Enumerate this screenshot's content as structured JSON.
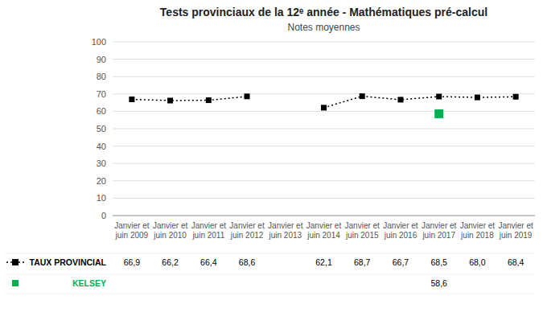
{
  "chart_data": {
    "type": "line",
    "title": "Tests provinciaux de la 12ᵉ année - Mathématiques pré-calcul",
    "subtitle": "Notes moyennes",
    "categories": [
      "Janvier et\njuin 2009",
      "Janvier et\njuin 2010",
      "Janvier et\njuin 2011",
      "Janvier et\njuin 2012",
      "Janvier et\njuin 2013",
      "Janvier et\njuin 2014",
      "Janvier et\njuin 2015",
      "Janvier et\njuin 2016",
      "Janvier et\njuin 2017",
      "Janvier et\njuin 2018",
      "Janvier et\njuin 2019"
    ],
    "series": [
      {
        "name": "TAUX PROVINCIAL",
        "color": "#000000",
        "line_style": "dotted",
        "marker": "square",
        "values": [
          66.9,
          66.2,
          66.4,
          68.6,
          null,
          62.1,
          68.7,
          66.7,
          68.5,
          68.0,
          68.4
        ],
        "value_labels": [
          "66,9",
          "66,2",
          "66,4",
          "68,6",
          null,
          "62,1",
          "68,7",
          "66,7",
          "68,5",
          "68,0",
          "68,4"
        ]
      },
      {
        "name": "KELSEY",
        "color": "#00b050",
        "line_style": "none",
        "marker": "square",
        "values": [
          null,
          null,
          null,
          null,
          null,
          null,
          null,
          null,
          58.6,
          null,
          null
        ],
        "value_labels": [
          null,
          null,
          null,
          null,
          null,
          null,
          null,
          null,
          "58,6",
          null,
          null
        ]
      }
    ],
    "ylim": [
      0,
      100
    ],
    "yticks": [
      0,
      10,
      20,
      30,
      40,
      50,
      60,
      70,
      80,
      90,
      100
    ],
    "grid": true,
    "legend": "bottom",
    "data_labels": true
  }
}
